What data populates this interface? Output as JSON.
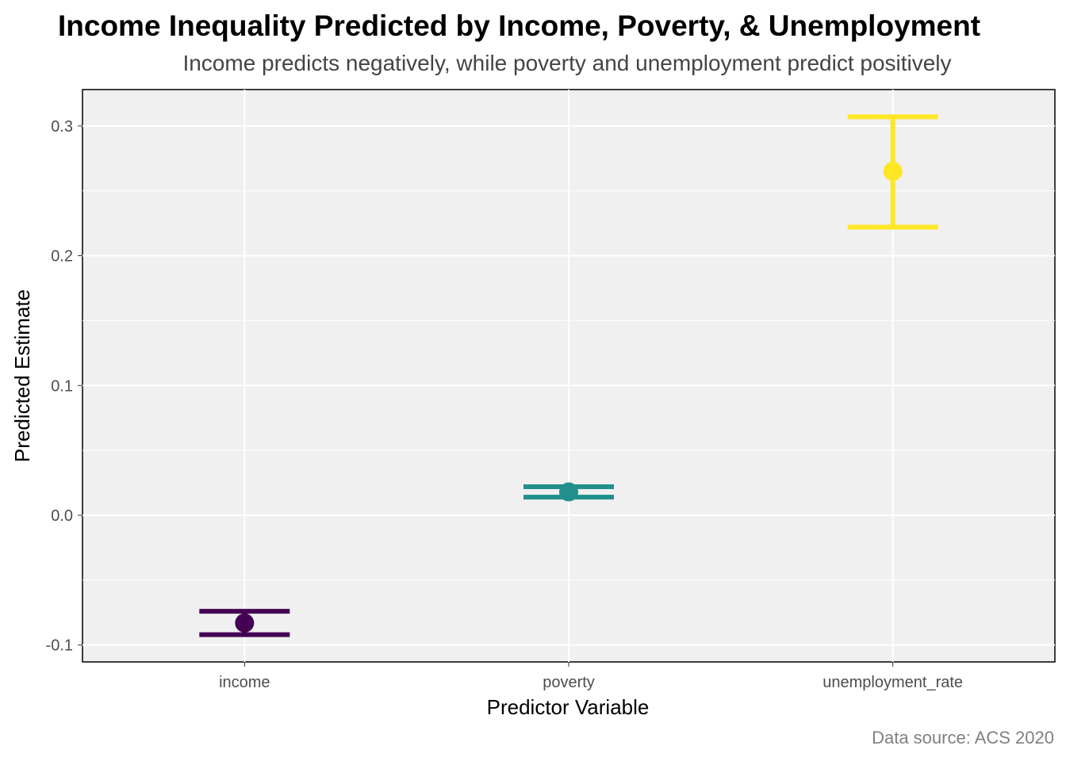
{
  "chart_data": {
    "type": "errorbar",
    "title": "Income Inequality Predicted by Income, Poverty, & Unemployment",
    "subtitle": "Income predicts negatively, while poverty and unemployment predict positively",
    "caption": "Data source: ACS 2020",
    "xlabel": "Predictor Variable",
    "ylabel": "Predicted Estimate",
    "categories": [
      "income",
      "poverty",
      "unemployment_rate"
    ],
    "points": [
      {
        "category": "income",
        "estimate": -0.083,
        "lower": -0.092,
        "upper": -0.074,
        "color": "#440154"
      },
      {
        "category": "poverty",
        "estimate": 0.018,
        "lower": 0.014,
        "upper": 0.022,
        "color": "#21908C"
      },
      {
        "category": "unemployment_rate",
        "estimate": 0.265,
        "lower": 0.222,
        "upper": 0.307,
        "color": "#FDE725"
      }
    ],
    "y_ticks": [
      "-0.1",
      "0.0",
      "0.1",
      "0.2",
      "0.3"
    ],
    "ylim": [
      -0.113,
      0.328
    ],
    "grid": true,
    "legend": "none"
  }
}
